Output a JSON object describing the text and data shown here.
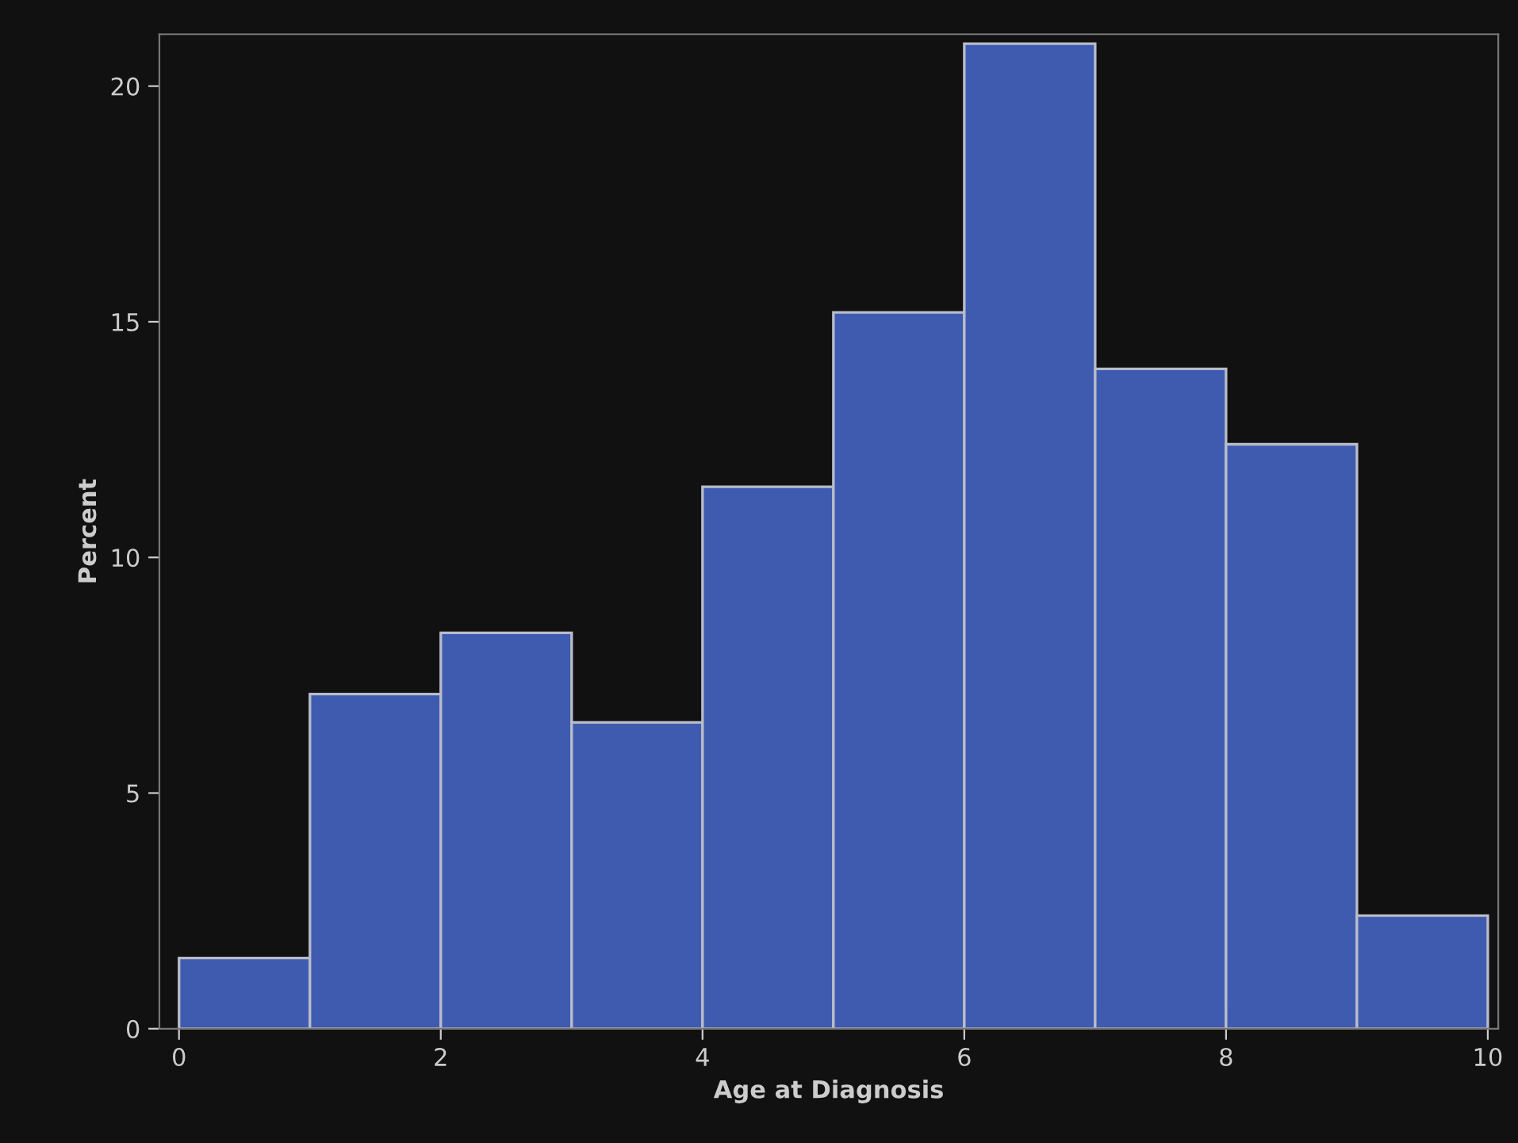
{
  "chart_data": {
    "type": "histogram",
    "xlabel": "Age at Diagnosis",
    "ylabel": "Percent",
    "bins": [
      0,
      1,
      2,
      3,
      4,
      5,
      6,
      7,
      8,
      9,
      10
    ],
    "values": [
      1.5,
      7.1,
      8.4,
      6.5,
      11.5,
      15.2,
      20.9,
      14.0,
      12.4,
      2.4
    ],
    "color": "#3f5bb0",
    "xlim": [
      -0.15,
      10.08
    ],
    "ylim": [
      0,
      21.1
    ],
    "xticks": [
      0,
      2,
      4,
      6,
      8,
      10
    ],
    "yticks": [
      0,
      5,
      10,
      15,
      20
    ],
    "grid": false
  }
}
